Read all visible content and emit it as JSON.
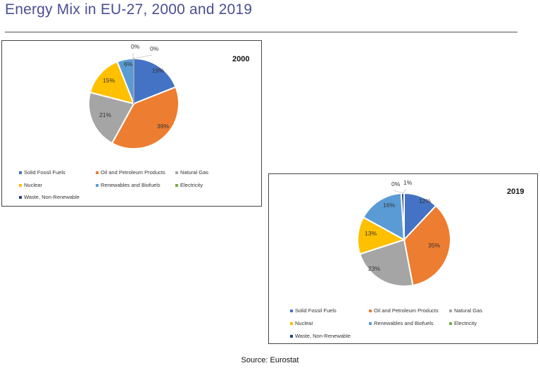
{
  "page": {
    "title": "Energy Mix in EU-27, 2000 and 2019",
    "source": "Source: Eurostat"
  },
  "colors": {
    "solid_fossil_fuels": "#4472c4",
    "oil_petroleum": "#ed7d31",
    "natural_gas": "#a5a5a5",
    "nuclear": "#ffc000",
    "renewables": "#5b9bd5",
    "electricity": "#70ad47",
    "waste": "#264478"
  },
  "chart_data": [
    {
      "type": "pie",
      "title": "2000",
      "categories": [
        "Solid Fossil Fuels",
        "Oil and Petroleum Products",
        "Natural Gas",
        "Nuclear",
        "Renewables and Biofuels",
        "Electricity",
        "Waste, Non-Renewable"
      ],
      "values": [
        19,
        39,
        21,
        15,
        6,
        0,
        0
      ],
      "data_labels": [
        "19%",
        "39%",
        "21%",
        "15%",
        "6%",
        "0%",
        "0%"
      ],
      "legend_position": "bottom"
    },
    {
      "type": "pie",
      "title": "2019",
      "categories": [
        "Solid Fossil Fuels",
        "Oil and Petroleum Products",
        "Natural Gas",
        "Nuclear",
        "Renewables and Biofuels",
        "Electricity",
        "Waste, Non-Renewable"
      ],
      "values": [
        12,
        35,
        23,
        13,
        16,
        0,
        1
      ],
      "data_labels": [
        "12%",
        "35%",
        "23%",
        "13%",
        "16%",
        "0%",
        "1%"
      ],
      "legend_position": "bottom"
    }
  ]
}
